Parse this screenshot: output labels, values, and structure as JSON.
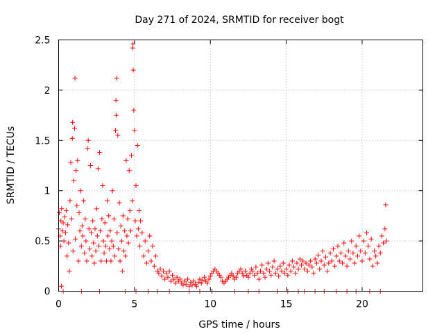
{
  "chart_data": {
    "type": "scatter",
    "title": "Day 271 of 2024, SRMTID for receiver bogt",
    "xlabel": "GPS time / hours",
    "ylabel": "SRMTID / TECUs",
    "xlim": [
      0,
      24
    ],
    "ylim": [
      0,
      2.5
    ],
    "x_ticks": [
      0,
      5,
      10,
      15,
      20
    ],
    "x_tick_labels": [
      "0",
      "5",
      "10",
      "15",
      "20"
    ],
    "y_ticks": [
      0,
      0.5,
      1,
      1.5,
      2,
      2.5
    ],
    "y_tick_labels": [
      "0",
      "0.5",
      "1",
      "1.5",
      "2",
      "2.5"
    ],
    "grid": true,
    "marker": "plus",
    "color": "#ff0000",
    "series": [
      {
        "name": "SRMTID",
        "points": [
          [
            0.0,
            0.62
          ],
          [
            0.05,
            0.78
          ],
          [
            0.1,
            0.55
          ],
          [
            0.12,
            0.45
          ],
          [
            0.15,
            0.7
          ],
          [
            0.18,
            0.05
          ],
          [
            0.2,
            0.82
          ],
          [
            0.25,
            0.6
          ],
          [
            0.3,
            0.68
          ],
          [
            0.35,
            0.5
          ],
          [
            0.4,
            0.74
          ],
          [
            0.45,
            0.58
          ],
          [
            0.5,
            0.8
          ],
          [
            0.55,
            0.35
          ],
          [
            0.6,
            0.66
          ],
          [
            0.65,
            0.48
          ],
          [
            0.7,
            0.2
          ],
          [
            0.75,
            0.9
          ],
          [
            0.8,
            1.28
          ],
          [
            0.85,
            0.72
          ],
          [
            0.9,
            1.52
          ],
          [
            0.92,
            1.68
          ],
          [
            0.95,
            0.4
          ],
          [
            1.0,
            1.1
          ],
          [
            1.05,
            1.62
          ],
          [
            1.08,
            2.12
          ],
          [
            1.1,
            0.52
          ],
          [
            1.15,
            1.2
          ],
          [
            1.2,
            0.85
          ],
          [
            1.25,
            1.3
          ],
          [
            1.3,
            0.3
          ],
          [
            1.35,
            0.78
          ],
          [
            1.4,
            0.6
          ],
          [
            1.45,
            1.0
          ],
          [
            1.5,
            0.45
          ],
          [
            1.55,
            0.65
          ],
          [
            1.6,
            0.55
          ],
          [
            1.65,
            0.9
          ],
          [
            1.7,
            0.38
          ],
          [
            1.75,
            0.72
          ],
          [
            1.8,
            0.5
          ],
          [
            1.85,
            0.3
          ],
          [
            1.9,
            1.42
          ],
          [
            1.95,
            1.5
          ],
          [
            2.0,
            0.62
          ],
          [
            2.05,
            0.42
          ],
          [
            2.1,
            1.25
          ],
          [
            2.15,
            0.58
          ],
          [
            2.2,
            0.35
          ],
          [
            2.25,
            0.7
          ],
          [
            2.3,
            0.48
          ],
          [
            2.35,
            0.28
          ],
          [
            2.4,
            0.62
          ],
          [
            2.45,
            0.4
          ],
          [
            2.5,
            0.82
          ],
          [
            2.55,
            0.55
          ],
          [
            2.6,
            1.22
          ],
          [
            2.65,
            0.45
          ],
          [
            2.7,
            1.38
          ],
          [
            2.75,
            0.6
          ],
          [
            2.8,
            0.3
          ],
          [
            2.85,
            0.72
          ],
          [
            2.9,
            1.05
          ],
          [
            2.95,
            0.5
          ],
          [
            3.0,
            0.38
          ],
          [
            3.05,
            0.68
          ],
          [
            3.1,
            0.45
          ],
          [
            3.15,
            0.3
          ],
          [
            3.2,
            0.9
          ],
          [
            3.25,
            0.55
          ],
          [
            3.3,
            0.75
          ],
          [
            3.35,
            0.42
          ],
          [
            3.4,
            0.6
          ],
          [
            3.45,
            0.3
          ],
          [
            3.5,
            0.5
          ],
          [
            3.55,
            1.0
          ],
          [
            3.6,
            0.45
          ],
          [
            3.65,
            0.72
          ],
          [
            3.7,
            0.35
          ],
          [
            3.75,
            1.6
          ],
          [
            3.78,
            1.9
          ],
          [
            3.8,
            1.75
          ],
          [
            3.82,
            2.12
          ],
          [
            3.85,
            0.58
          ],
          [
            3.9,
            1.55
          ],
          [
            3.95,
            0.42
          ],
          [
            4.0,
            0.88
          ],
          [
            4.05,
            0.3
          ],
          [
            4.1,
            0.65
          ],
          [
            4.15,
            0.5
          ],
          [
            4.2,
            0.2
          ],
          [
            4.25,
            0.75
          ],
          [
            4.3,
            0.4
          ],
          [
            4.35,
            0.6
          ],
          [
            4.4,
            0.35
          ],
          [
            4.45,
            1.3
          ],
          [
            4.5,
            0.55
          ],
          [
            4.55,
            0.72
          ],
          [
            4.6,
            0.48
          ],
          [
            4.65,
            1.2
          ],
          [
            4.7,
            0.8
          ],
          [
            4.75,
            0.6
          ],
          [
            4.8,
            1.35
          ],
          [
            4.85,
            0.9
          ],
          [
            4.88,
            2.42
          ],
          [
            4.9,
            2.46
          ],
          [
            4.92,
            2.2
          ],
          [
            4.95,
            1.8
          ],
          [
            5.0,
            1.6
          ],
          [
            5.05,
            0.7
          ],
          [
            5.1,
            1.05
          ],
          [
            5.15,
            0.55
          ],
          [
            5.2,
            1.45
          ],
          [
            5.25,
            0.62
          ],
          [
            5.3,
            0.8
          ],
          [
            5.35,
            0.45
          ],
          [
            5.4,
            0.7
          ],
          [
            5.5,
            0.58
          ],
          [
            5.6,
            0.35
          ],
          [
            5.7,
            0.5
          ],
          [
            5.8,
            0.28
          ],
          [
            5.9,
            0.4
          ],
          [
            6.0,
            0.55
          ],
          [
            6.1,
            0.3
          ],
          [
            6.2,
            0.45
          ],
          [
            6.3,
            0.25
          ],
          [
            6.4,
            0.35
          ],
          [
            6.5,
            0.2
          ],
          [
            6.6,
            0.18
          ],
          [
            6.7,
            0.22
          ],
          [
            6.8,
            0.15
          ],
          [
            6.9,
            0.2
          ],
          [
            7.0,
            0.12
          ],
          [
            7.1,
            0.18
          ],
          [
            7.2,
            0.14
          ],
          [
            7.3,
            0.2
          ],
          [
            7.4,
            0.1
          ],
          [
            7.5,
            0.16
          ],
          [
            7.6,
            0.12
          ],
          [
            7.7,
            0.08
          ],
          [
            7.8,
            0.14
          ],
          [
            7.9,
            0.1
          ],
          [
            8.0,
            0.12
          ],
          [
            8.1,
            0.08
          ],
          [
            8.2,
            0.06
          ],
          [
            8.3,
            0.1
          ],
          [
            8.4,
            0.07
          ],
          [
            8.5,
            0.12
          ],
          [
            8.6,
            0.05
          ],
          [
            8.7,
            0.09
          ],
          [
            8.8,
            0.06
          ],
          [
            8.9,
            0.1
          ],
          [
            9.0,
            0.07
          ],
          [
            9.1,
            0.05
          ],
          [
            9.2,
            0.09
          ],
          [
            9.3,
            0.12
          ],
          [
            9.4,
            0.08
          ],
          [
            9.5,
            0.11
          ],
          [
            9.6,
            0.14
          ],
          [
            9.7,
            0.1
          ],
          [
            9.8,
            0.08
          ],
          [
            9.9,
            0.12
          ],
          [
            10.0,
            0.15
          ],
          [
            10.1,
            0.18
          ],
          [
            10.2,
            0.2
          ],
          [
            10.3,
            0.22
          ],
          [
            10.4,
            0.2
          ],
          [
            10.5,
            0.18
          ],
          [
            10.6,
            0.16
          ],
          [
            10.7,
            0.14
          ],
          [
            10.8,
            0.1
          ],
          [
            10.9,
            0.08
          ],
          [
            11.0,
            0.1
          ],
          [
            11.1,
            0.12
          ],
          [
            11.2,
            0.14
          ],
          [
            11.3,
            0.16
          ],
          [
            11.4,
            0.18
          ],
          [
            11.5,
            0.15
          ],
          [
            11.6,
            0.12
          ],
          [
            11.7,
            0.14
          ],
          [
            11.8,
            0.18
          ],
          [
            11.9,
            0.2
          ],
          [
            12.0,
            0.22
          ],
          [
            12.1,
            0.18
          ],
          [
            12.2,
            0.15
          ],
          [
            12.3,
            0.2
          ],
          [
            12.4,
            0.16
          ],
          [
            12.5,
            0.14
          ],
          [
            12.6,
            0.18
          ],
          [
            12.7,
            0.22
          ],
          [
            12.8,
            0.2
          ],
          [
            12.9,
            0.16
          ],
          [
            13.0,
            0.24
          ],
          [
            13.1,
            0.18
          ],
          [
            13.2,
            0.12
          ],
          [
            13.3,
            0.2
          ],
          [
            13.4,
            0.26
          ],
          [
            13.5,
            0.18
          ],
          [
            13.6,
            0.14
          ],
          [
            13.7,
            0.22
          ],
          [
            13.8,
            0.28
          ],
          [
            13.9,
            0.2
          ],
          [
            14.0,
            0.16
          ],
          [
            14.1,
            0.24
          ],
          [
            14.2,
            0.3
          ],
          [
            14.3,
            0.18
          ],
          [
            14.4,
            0.22
          ],
          [
            14.5,
            0.15
          ],
          [
            14.6,
            0.25
          ],
          [
            14.7,
            0.2
          ],
          [
            14.8,
            0.28
          ],
          [
            14.9,
            0.18
          ],
          [
            15.0,
            0.22
          ],
          [
            15.1,
            0.16
          ],
          [
            15.2,
            0.26
          ],
          [
            15.3,
            0.2
          ],
          [
            15.4,
            0.3
          ],
          [
            15.5,
            0.24
          ],
          [
            15.6,
            0.18
          ],
          [
            15.7,
            0.28
          ],
          [
            15.8,
            0.22
          ],
          [
            15.9,
            0.32
          ],
          [
            16.0,
            0.26
          ],
          [
            16.1,
            0.3
          ],
          [
            16.2,
            0.22
          ],
          [
            16.3,
            0.28
          ],
          [
            16.4,
            0.2
          ],
          [
            16.5,
            0.26
          ],
          [
            16.6,
            0.3
          ],
          [
            16.7,
            0.24
          ],
          [
            16.8,
            0.18
          ],
          [
            16.9,
            0.32
          ],
          [
            17.0,
            0.28
          ],
          [
            17.1,
            0.36
          ],
          [
            17.2,
            0.22
          ],
          [
            17.3,
            0.3
          ],
          [
            17.4,
            0.4
          ],
          [
            17.5,
            0.26
          ],
          [
            17.6,
            0.34
          ],
          [
            17.7,
            0.2
          ],
          [
            17.8,
            0.28
          ],
          [
            17.9,
            0.38
          ],
          [
            18.0,
            0.3
          ],
          [
            18.1,
            0.42
          ],
          [
            18.2,
            0.25
          ],
          [
            18.3,
            0.35
          ],
          [
            18.4,
            0.45
          ],
          [
            18.5,
            0.3
          ],
          [
            18.6,
            0.38
          ],
          [
            18.7,
            0.28
          ],
          [
            18.8,
            0.48
          ],
          [
            18.9,
            0.35
          ],
          [
            19.0,
            0.25
          ],
          [
            19.1,
            0.4
          ],
          [
            19.2,
            0.32
          ],
          [
            19.3,
            0.5
          ],
          [
            19.4,
            0.38
          ],
          [
            19.5,
            0.28
          ],
          [
            19.6,
            0.45
          ],
          [
            19.7,
            0.35
          ],
          [
            19.8,
            0.55
          ],
          [
            19.9,
            0.4
          ],
          [
            20.0,
            0.3
          ],
          [
            20.1,
            0.5
          ],
          [
            20.2,
            0.38
          ],
          [
            20.3,
            0.58
          ],
          [
            20.4,
            0.45
          ],
          [
            20.5,
            0.32
          ],
          [
            20.6,
            0.52
          ],
          [
            20.7,
            0.25
          ],
          [
            20.8,
            0.4
          ],
          [
            20.9,
            0.35
          ],
          [
            21.0,
            0.28
          ],
          [
            21.1,
            0.45
          ],
          [
            21.2,
            0.38
          ],
          [
            21.3,
            0.55
          ],
          [
            21.4,
            0.48
          ],
          [
            21.5,
            0.62
          ],
          [
            21.55,
            0.86
          ],
          [
            21.6,
            0.5
          ],
          [
            0.3,
            0.0
          ],
          [
            1.5,
            0.0
          ],
          [
            2.7,
            0.0
          ],
          [
            4.4,
            0.0
          ],
          [
            5.1,
            0.0
          ],
          [
            5.9,
            0.0
          ],
          [
            6.5,
            0.0
          ],
          [
            7.3,
            0.0
          ],
          [
            8.6,
            0.0
          ],
          [
            9.3,
            0.0
          ],
          [
            10.1,
            0.0
          ],
          [
            11.6,
            0.0
          ],
          [
            12.5,
            0.0
          ],
          [
            13.2,
            0.0
          ],
          [
            14.4,
            0.0
          ],
          [
            15.1,
            0.0
          ],
          [
            15.8,
            0.0
          ],
          [
            16.2,
            0.0
          ],
          [
            16.9,
            0.0
          ],
          [
            17.5,
            0.0
          ],
          [
            18.3,
            0.0
          ],
          [
            19.0,
            0.0
          ],
          [
            19.6,
            0.0
          ],
          [
            20.5,
            0.0
          ],
          [
            21.2,
            0.0
          ]
        ]
      }
    ]
  }
}
